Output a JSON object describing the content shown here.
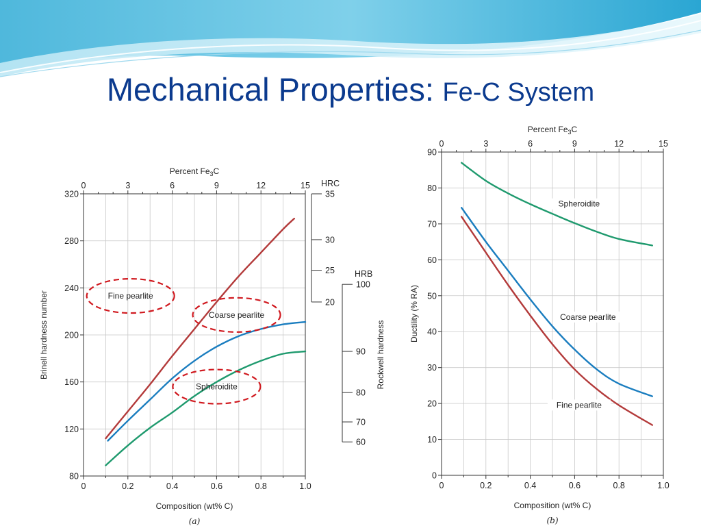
{
  "slide": {
    "title": "Mechanical Properties:",
    "subtitle": "Fe-C System"
  },
  "colors": {
    "title": "#0b3a8e",
    "fine_pearlite": "#b33a3a",
    "coarse_pearlite": "#1a7dbf",
    "spheroidite": "#1f9a6e",
    "annotation": "#d0191f",
    "grid": "#c8c8c8"
  },
  "chart_data": [
    {
      "type": "line",
      "caption": "(a)",
      "xlabel": "Composition (wt% C)",
      "ylabel": "Brinell hardness number",
      "xlim": [
        0,
        1.0
      ],
      "ylim": [
        80,
        320
      ],
      "xticks": [
        "0",
        "0.2",
        "0.4",
        "0.6",
        "0.8",
        "1.0"
      ],
      "yticks": [
        "80",
        "120",
        "160",
        "200",
        "240",
        "280",
        "320"
      ],
      "top_axis": {
        "label": "Percent Fe3C",
        "label_main": "Percent Fe",
        "label_sub": "3",
        "label_tail": "C",
        "ticks": [
          "0",
          "3",
          "6",
          "9",
          "12",
          "15"
        ]
      },
      "right_axis_hrc": {
        "label": "HRC",
        "ticks": [
          {
            "label": "35",
            "hb": 320
          },
          {
            "label": "30",
            "hb": 281
          },
          {
            "label": "25",
            "hb": 255
          },
          {
            "label": "20",
            "hb": 228
          }
        ]
      },
      "right_axis_hrb": {
        "label": "HRB",
        "title": "Rockwell hardness",
        "ticks": [
          {
            "label": "100",
            "hb": 243
          },
          {
            "label": "90",
            "hb": 186
          },
          {
            "label": "80",
            "hb": 151
          },
          {
            "label": "70",
            "hb": 126
          },
          {
            "label": "60",
            "hb": 109
          }
        ]
      },
      "grid": true,
      "series": [
        {
          "name": "Fine pearlite",
          "color": "#b33a3a",
          "x": [
            0.1,
            0.2,
            0.3,
            0.4,
            0.5,
            0.6,
            0.7,
            0.8,
            0.9,
            0.95
          ],
          "y": [
            112,
            135,
            158,
            182,
            205,
            228,
            250,
            270,
            290,
            299
          ]
        },
        {
          "name": "Coarse pearlite",
          "color": "#1a7dbf",
          "x": [
            0.11,
            0.2,
            0.3,
            0.4,
            0.5,
            0.6,
            0.7,
            0.8,
            0.9,
            1.0
          ],
          "y": [
            110,
            127,
            145,
            163,
            178,
            190,
            199,
            205,
            209,
            211
          ]
        },
        {
          "name": "Spheroidite",
          "color": "#1f9a6e",
          "x": [
            0.1,
            0.2,
            0.3,
            0.4,
            0.5,
            0.6,
            0.7,
            0.8,
            0.9,
            1.0
          ],
          "y": [
            89,
            106,
            121,
            134,
            148,
            160,
            170,
            178,
            184,
            186
          ]
        }
      ],
      "annotations": [
        {
          "text": "Fine pearlite",
          "x": 0.32,
          "y": 232
        },
        {
          "text": "Coarse pearlite",
          "x": 0.69,
          "y": 217
        },
        {
          "text": "Spheroidite",
          "x": 0.6,
          "y": 156
        }
      ]
    },
    {
      "type": "line",
      "caption": "(b)",
      "xlabel": "Composition (wt% C)",
      "ylabel": "Ductility (% RA)",
      "xlim": [
        0,
        1.0
      ],
      "ylim": [
        0,
        90
      ],
      "xticks": [
        "0",
        "0.2",
        "0.4",
        "0.6",
        "0.8",
        "1.0"
      ],
      "yticks": [
        "0",
        "10",
        "20",
        "30",
        "40",
        "50",
        "60",
        "70",
        "80",
        "90"
      ],
      "top_axis": {
        "label": "Percent Fe3C",
        "label_main": "Percent Fe",
        "label_sub": "3",
        "label_tail": "C",
        "ticks": [
          "0",
          "3",
          "6",
          "9",
          "12",
          "15"
        ]
      },
      "grid": true,
      "series": [
        {
          "name": "Spheroidite",
          "color": "#1f9a6e",
          "x": [
            0.09,
            0.2,
            0.3,
            0.4,
            0.5,
            0.6,
            0.7,
            0.8,
            0.95
          ],
          "y": [
            87,
            82,
            78.5,
            75.5,
            72.8,
            70.2,
            67.8,
            65.8,
            64
          ]
        },
        {
          "name": "Coarse pearlite",
          "color": "#1a7dbf",
          "x": [
            0.09,
            0.2,
            0.3,
            0.4,
            0.5,
            0.6,
            0.7,
            0.8,
            0.95
          ],
          "y": [
            74.5,
            65,
            57,
            49,
            41.5,
            35,
            29.5,
            25.5,
            22
          ]
        },
        {
          "name": "Fine pearlite",
          "color": "#b33a3a",
          "x": [
            0.09,
            0.2,
            0.3,
            0.4,
            0.5,
            0.6,
            0.7,
            0.8,
            0.95
          ],
          "y": [
            72,
            62,
            53,
            44.5,
            36.5,
            29.5,
            24,
            19.5,
            14
          ]
        }
      ],
      "series_labels": [
        {
          "text": "Spheroidite",
          "x": 0.62,
          "y": 75
        },
        {
          "text": "Coarse pearlite",
          "x": 0.66,
          "y": 43.5
        },
        {
          "text": "Fine pearlite",
          "x": 0.62,
          "y": 19
        }
      ]
    }
  ]
}
